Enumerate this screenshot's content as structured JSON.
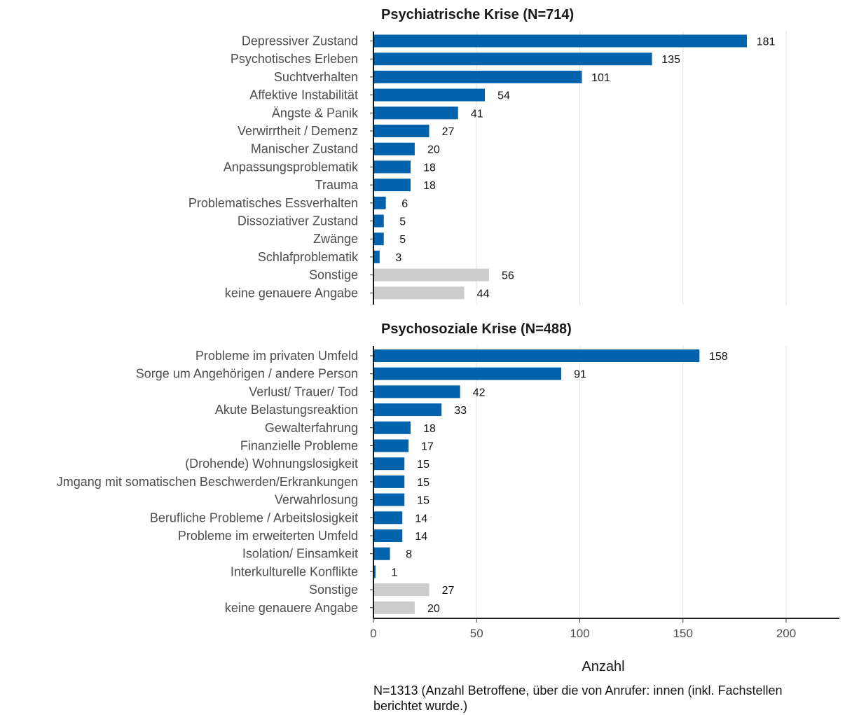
{
  "chart_data": {
    "type": "bar",
    "orientation": "horizontal",
    "xlabel": "Anzahl",
    "xlim": [
      0,
      225
    ],
    "xticks": [
      0,
      50,
      100,
      150,
      200
    ],
    "grid": "vertical",
    "colors": {
      "main": "#0063ac",
      "other": "#cccccc"
    },
    "panels": [
      {
        "title": "Psychiatrische Krise (N=714)",
        "categories": [
          "Depressiver Zustand",
          "Psychotisches Erleben",
          "Suchtverhalten",
          "Affektive Instabilität",
          "Ängste & Panik",
          "Verwirrtheit / Demenz",
          "Manischer Zustand",
          "Anpassungsproblematik",
          "Trauma",
          "Problematisches Essverhalten",
          "Dissoziativer Zustand",
          "Zwänge",
          "Schlafproblematik",
          "Sonstige",
          "keine genauere Angabe"
        ],
        "values": [
          181,
          135,
          101,
          54,
          41,
          27,
          20,
          18,
          18,
          6,
          5,
          5,
          3,
          56,
          44
        ],
        "grey": [
          false,
          false,
          false,
          false,
          false,
          false,
          false,
          false,
          false,
          false,
          false,
          false,
          false,
          true,
          true
        ]
      },
      {
        "title": "Psychosoziale Krise (N=488)",
        "categories": [
          "Probleme im privaten Umfeld",
          "Sorge um Angehörigen / andere Person",
          "Verlust/ Trauer/ Tod",
          "Akute Belastungsreaktion",
          "Gewalterfahrung",
          "Finanzielle Probleme",
          "(Drohende) Wohnungslosigkeit",
          "Jmgang mit somatischen Beschwerden/Erkrankungen",
          "Verwahrlosung",
          "Berufliche Probleme / Arbeitslosigkeit",
          "Probleme im erweiterten Umfeld",
          "Isolation/ Einsamkeit",
          "Interkulturelle Konflikte",
          "Sonstige",
          "keine genauere Angabe"
        ],
        "values": [
          158,
          91,
          42,
          33,
          18,
          17,
          15,
          15,
          15,
          14,
          14,
          8,
          1,
          27,
          20
        ],
        "grey": [
          false,
          false,
          false,
          false,
          false,
          false,
          false,
          false,
          false,
          false,
          false,
          false,
          false,
          true,
          true
        ]
      }
    ]
  },
  "caption": "N=1313 (Anzahl Betroffene, über die von Anrufer: innen (inkl. Fachstellen\nberichtet wurde.)"
}
